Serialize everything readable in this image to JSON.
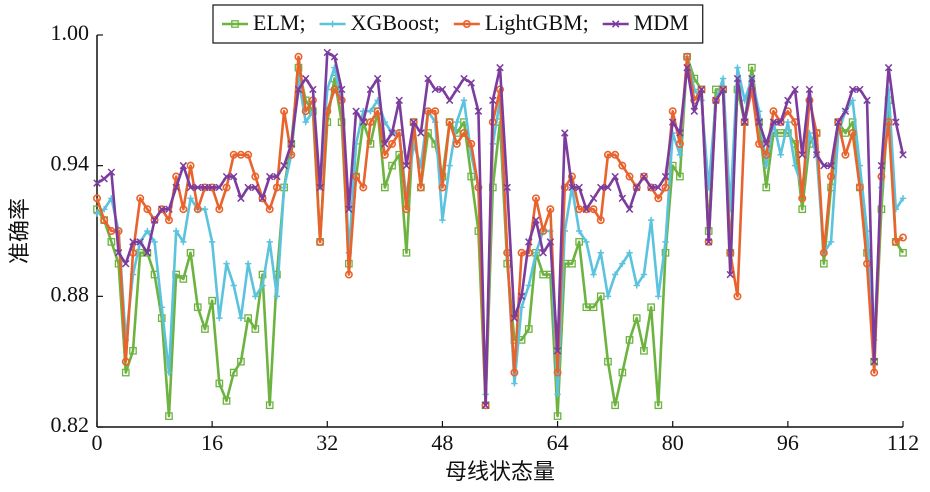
{
  "chart_data": {
    "type": "line",
    "xlabel": "母线状态量",
    "ylabel": "准确率",
    "x": [
      0,
      1,
      2,
      3,
      4,
      5,
      6,
      7,
      8,
      9,
      10,
      11,
      12,
      13,
      14,
      15,
      16,
      17,
      18,
      19,
      20,
      21,
      22,
      23,
      24,
      25,
      26,
      27,
      28,
      29,
      30,
      31,
      32,
      33,
      34,
      35,
      36,
      37,
      38,
      39,
      40,
      41,
      42,
      43,
      44,
      45,
      46,
      47,
      48,
      49,
      50,
      51,
      52,
      53,
      54,
      55,
      56,
      57,
      58,
      59,
      60,
      61,
      62,
      63,
      64,
      65,
      66,
      67,
      68,
      69,
      70,
      71,
      72,
      73,
      74,
      75,
      76,
      77,
      78,
      79,
      80,
      81,
      82,
      83,
      84,
      85,
      86,
      87,
      88,
      89,
      90,
      91,
      92,
      93,
      94,
      95,
      96,
      97,
      98,
      99,
      100,
      101,
      102,
      103,
      104,
      105,
      106,
      107,
      108,
      109,
      110,
      111,
      112
    ],
    "xlim": [
      0,
      112
    ],
    "xticks": [
      0,
      16,
      32,
      48,
      64,
      80,
      96,
      112
    ],
    "ylim": [
      0.82,
      1
    ],
    "yticks": [
      0.82,
      0.88,
      0.94,
      {
        "value": 1,
        "label": "1.00"
      }
    ],
    "legend": "top",
    "series": [
      {
        "name": "ELM;",
        "color": "#6db33f",
        "values": [
          0.92,
          0.915,
          0.905,
          0.895,
          0.845,
          0.855,
          0.9,
          0.9,
          0.89,
          0.87,
          0.825,
          0.89,
          0.888,
          0.9,
          0.875,
          0.865,
          0.878,
          0.84,
          0.832,
          0.845,
          0.85,
          0.87,
          0.865,
          0.89,
          0.83,
          0.89,
          0.93,
          0.95,
          0.985,
          0.97,
          0.965,
          0.905,
          0.96,
          0.98,
          0.96,
          0.895,
          0.935,
          0.96,
          0.95,
          0.965,
          0.93,
          0.94,
          0.945,
          0.9,
          0.96,
          0.93,
          0.955,
          0.95,
          0.935,
          0.96,
          0.955,
          0.96,
          0.935,
          0.91,
          0.83,
          0.93,
          0.96,
          0.895,
          0.86,
          0.86,
          0.865,
          0.9,
          0.89,
          0.89,
          0.825,
          0.895,
          0.895,
          0.905,
          0.875,
          0.875,
          0.88,
          0.85,
          0.83,
          0.845,
          0.86,
          0.87,
          0.855,
          0.875,
          0.83,
          0.9,
          0.94,
          0.935,
          0.99,
          0.98,
          0.975,
          0.91,
          0.975,
          0.975,
          0.9,
          0.975,
          0.96,
          0.985,
          0.96,
          0.93,
          0.955,
          0.955,
          0.955,
          0.95,
          0.92,
          0.95,
          0.955,
          0.895,
          0.93,
          0.96,
          0.955,
          0.96,
          0.93,
          0.9,
          0.85,
          0.92,
          0.97,
          0.905,
          0.9
        ]
      },
      {
        "name": "XGBoost;",
        "color": "#5bc3de",
        "values": [
          0.918,
          0.92,
          0.925,
          0.91,
          0.86,
          0.89,
          0.905,
          0.91,
          0.905,
          0.875,
          0.845,
          0.91,
          0.905,
          0.925,
          0.92,
          0.92,
          0.905,
          0.87,
          0.895,
          0.885,
          0.87,
          0.895,
          0.88,
          0.885,
          0.905,
          0.88,
          0.93,
          0.945,
          0.98,
          0.96,
          0.965,
          0.93,
          0.975,
          0.985,
          0.97,
          0.9,
          0.95,
          0.965,
          0.965,
          0.97,
          0.96,
          0.955,
          0.955,
          0.925,
          0.95,
          0.94,
          0.965,
          0.96,
          0.915,
          0.94,
          0.96,
          0.97,
          0.945,
          0.93,
          0.835,
          0.95,
          0.97,
          0.9,
          0.84,
          0.875,
          0.885,
          0.9,
          0.91,
          0.91,
          0.835,
          0.91,
          0.93,
          0.91,
          0.905,
          0.89,
          0.9,
          0.88,
          0.89,
          0.895,
          0.9,
          0.885,
          0.89,
          0.915,
          0.88,
          0.905,
          0.955,
          0.945,
          0.99,
          0.975,
          0.97,
          0.93,
          0.97,
          0.98,
          0.92,
          0.985,
          0.97,
          0.98,
          0.965,
          0.94,
          0.96,
          0.945,
          0.96,
          0.94,
          0.93,
          0.955,
          0.945,
          0.9,
          0.905,
          0.955,
          0.965,
          0.97,
          0.94,
          0.91,
          0.86,
          0.93,
          0.975,
          0.92,
          0.925
        ]
      },
      {
        "name": "LightGBM;",
        "color": "#e9632d",
        "values": [
          0.925,
          0.915,
          0.91,
          0.91,
          0.85,
          0.9,
          0.925,
          0.92,
          0.915,
          0.92,
          0.915,
          0.935,
          0.92,
          0.94,
          0.92,
          0.93,
          0.93,
          0.92,
          0.93,
          0.945,
          0.945,
          0.945,
          0.935,
          0.925,
          0.92,
          0.93,
          0.965,
          0.945,
          0.99,
          0.965,
          0.97,
          0.905,
          0.965,
          0.975,
          0.97,
          0.89,
          0.935,
          0.93,
          0.96,
          0.965,
          0.945,
          0.95,
          0.955,
          0.92,
          0.96,
          0.93,
          0.965,
          0.965,
          0.93,
          0.96,
          0.95,
          0.955,
          0.95,
          0.93,
          0.83,
          0.96,
          0.975,
          0.9,
          0.845,
          0.9,
          0.9,
          0.925,
          0.91,
          0.92,
          0.845,
          0.93,
          0.935,
          0.92,
          0.92,
          0.92,
          0.915,
          0.945,
          0.945,
          0.94,
          0.935,
          0.93,
          0.935,
          0.93,
          0.925,
          0.93,
          0.965,
          0.95,
          0.99,
          0.97,
          0.975,
          0.905,
          0.97,
          0.975,
          0.9,
          0.88,
          0.96,
          0.975,
          0.95,
          0.945,
          0.965,
          0.96,
          0.965,
          0.96,
          0.925,
          0.97,
          0.955,
          0.9,
          0.935,
          0.96,
          0.945,
          0.955,
          0.93,
          0.895,
          0.845,
          0.935,
          0.96,
          0.905,
          0.907
        ]
      },
      {
        "name": "MDM",
        "color": "#7b3c9e",
        "values": [
          0.932,
          0.934,
          0.937,
          0.9,
          0.895,
          0.905,
          0.905,
          0.9,
          0.915,
          0.92,
          0.92,
          0.93,
          0.94,
          0.93,
          0.93,
          0.93,
          0.93,
          0.93,
          0.935,
          0.935,
          0.925,
          0.93,
          0.93,
          0.925,
          0.935,
          0.935,
          0.94,
          0.95,
          0.975,
          0.98,
          0.975,
          0.93,
          0.992,
          0.99,
          0.975,
          0.92,
          0.965,
          0.96,
          0.975,
          0.98,
          0.95,
          0.955,
          0.97,
          0.94,
          0.96,
          0.955,
          0.98,
          0.975,
          0.975,
          0.97,
          0.975,
          0.98,
          0.978,
          0.965,
          0.83,
          0.97,
          0.985,
          0.93,
          0.87,
          0.88,
          0.905,
          0.915,
          0.9,
          0.905,
          0.855,
          0.955,
          0.93,
          0.93,
          0.92,
          0.925,
          0.93,
          0.93,
          0.935,
          0.925,
          0.92,
          0.93,
          0.935,
          0.93,
          0.93,
          0.935,
          0.96,
          0.955,
          0.985,
          0.965,
          0.975,
          0.905,
          0.97,
          0.975,
          0.89,
          0.98,
          0.96,
          0.98,
          0.96,
          0.95,
          0.96,
          0.96,
          0.97,
          0.975,
          0.945,
          0.975,
          0.945,
          0.94,
          0.94,
          0.96,
          0.965,
          0.975,
          0.975,
          0.97,
          0.85,
          0.94,
          0.985,
          0.96,
          0.945
        ]
      }
    ]
  }
}
